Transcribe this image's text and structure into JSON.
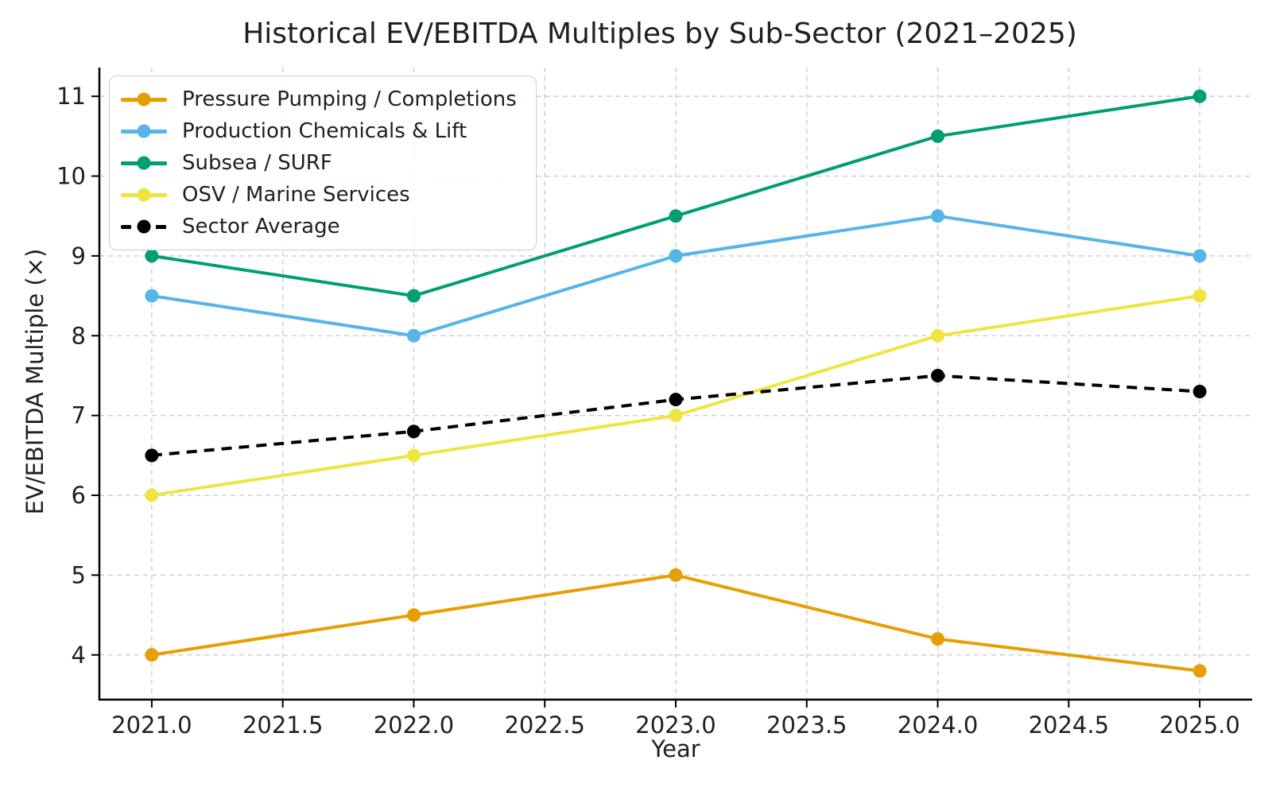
{
  "chart_data": {
    "type": "line",
    "title": "Historical EV/EBITDA Multiples by Sub-Sector (2021–2025)",
    "xlabel": "Year",
    "ylabel": "EV/EBITDA Multiple (×)",
    "x": [
      2021,
      2022,
      2023,
      2024,
      2025
    ],
    "series": [
      {
        "name": "Pressure Pumping / Completions",
        "color": "#E69F00",
        "line_style": "solid",
        "values": [
          4.0,
          4.5,
          5.0,
          4.2,
          3.8
        ]
      },
      {
        "name": "Production Chemicals & Lift",
        "color": "#56B4E9",
        "line_style": "solid",
        "values": [
          8.5,
          8.0,
          9.0,
          9.5,
          9.0
        ]
      },
      {
        "name": "Subsea / SURF",
        "color": "#009E73",
        "line_style": "solid",
        "values": [
          9.0,
          8.5,
          9.5,
          10.5,
          11.0
        ]
      },
      {
        "name": "OSV / Marine Services",
        "color": "#F0E442",
        "line_style": "solid",
        "values": [
          6.0,
          6.5,
          7.0,
          8.0,
          8.5
        ]
      },
      {
        "name": "Sector Average",
        "color": "#000000",
        "line_style": "dashed",
        "values": [
          6.5,
          6.8,
          7.2,
          7.5,
          7.3
        ]
      }
    ],
    "xticks": [
      2021.0,
      2021.5,
      2022.0,
      2022.5,
      2023.0,
      2023.5,
      2024.0,
      2024.5,
      2025.0
    ],
    "xtick_labels": [
      "2021.0",
      "2021.5",
      "2022.0",
      "2022.5",
      "2023.0",
      "2023.5",
      "2024.0",
      "2024.5",
      "2025.0"
    ],
    "yticks": [
      4,
      5,
      6,
      7,
      8,
      9,
      10,
      11
    ],
    "ytick_labels": [
      "4",
      "5",
      "6",
      "7",
      "8",
      "9",
      "10",
      "11"
    ],
    "xlim": [
      2020.8,
      2025.2
    ],
    "ylim": [
      3.44,
      11.36
    ],
    "grid": true,
    "grid_style": "dashed",
    "legend_position": "upper left",
    "colors": {
      "background": "#ffffff",
      "text": "#1f1f1f",
      "grid": "#cccccc",
      "spine": "#000000"
    }
  }
}
